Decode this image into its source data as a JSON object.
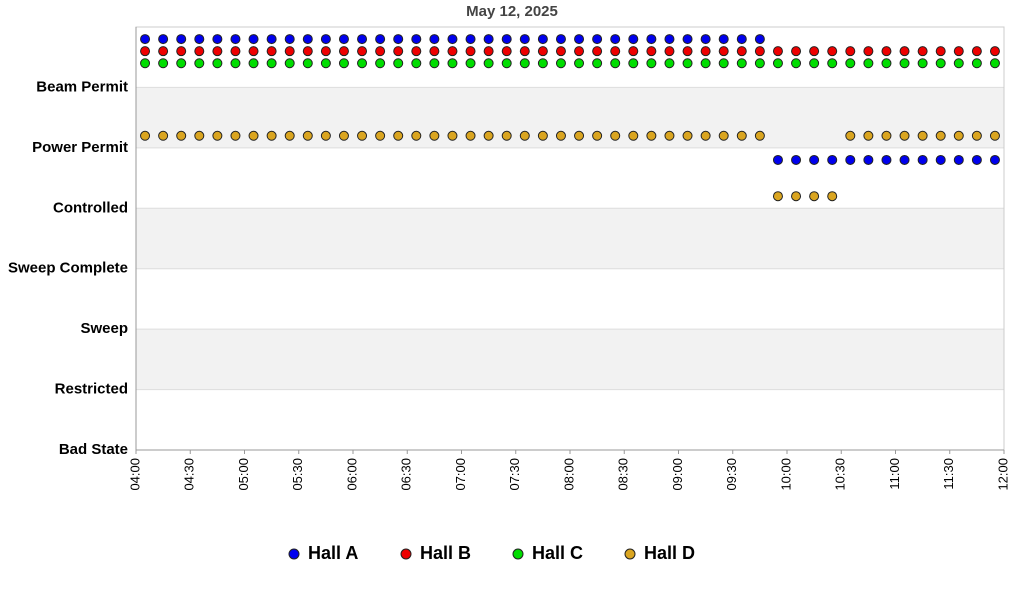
{
  "chart_data": {
    "type": "scatter",
    "title": "May 12, 2025",
    "x": [
      "04:05",
      "04:15",
      "04:25",
      "04:35",
      "04:45",
      "04:55",
      "05:05",
      "05:15",
      "05:25",
      "05:35",
      "05:45",
      "05:55",
      "06:05",
      "06:15",
      "06:25",
      "06:35",
      "06:45",
      "06:55",
      "07:05",
      "07:15",
      "07:25",
      "07:35",
      "07:45",
      "07:55",
      "08:05",
      "08:15",
      "08:25",
      "08:35",
      "08:45",
      "08:55",
      "09:05",
      "09:15",
      "09:25",
      "09:35",
      "09:45",
      "09:55",
      "10:05",
      "10:15",
      "10:25",
      "10:35",
      "10:45",
      "10:55",
      "11:05",
      "11:15",
      "11:25",
      "11:35",
      "11:45",
      "11:55"
    ],
    "xlim": [
      "04:00",
      "12:00"
    ],
    "xticks": [
      "04:00",
      "04:30",
      "05:00",
      "05:30",
      "06:00",
      "06:30",
      "07:00",
      "07:30",
      "08:00",
      "08:30",
      "09:00",
      "09:30",
      "10:00",
      "10:30",
      "11:00",
      "11:30",
      "12:00"
    ],
    "ylim": [
      0,
      7
    ],
    "yticks": [
      {
        "value": 0,
        "label": "Bad State"
      },
      {
        "value": 1,
        "label": "Restricted"
      },
      {
        "value": 2,
        "label": "Sweep"
      },
      {
        "value": 3,
        "label": "Sweep Complete"
      },
      {
        "value": 4,
        "label": "Controlled"
      },
      {
        "value": 5,
        "label": "Power Permit"
      },
      {
        "value": 6,
        "label": "Beam Permit"
      }
    ],
    "grid": true,
    "series": [
      {
        "name": "Hall A",
        "color": "#0000ee",
        "values": [
          6.8,
          6.8,
          6.8,
          6.8,
          6.8,
          6.8,
          6.8,
          6.8,
          6.8,
          6.8,
          6.8,
          6.8,
          6.8,
          6.8,
          6.8,
          6.8,
          6.8,
          6.8,
          6.8,
          6.8,
          6.8,
          6.8,
          6.8,
          6.8,
          6.8,
          6.8,
          6.8,
          6.8,
          6.8,
          6.8,
          6.8,
          6.8,
          6.8,
          6.8,
          6.8,
          4.8,
          4.8,
          4.8,
          4.8,
          4.8,
          4.8,
          4.8,
          4.8,
          4.8,
          4.8,
          4.8,
          4.8,
          4.8
        ]
      },
      {
        "name": "Hall B",
        "color": "#ee0000",
        "values": [
          6.6,
          6.6,
          6.6,
          6.6,
          6.6,
          6.6,
          6.6,
          6.6,
          6.6,
          6.6,
          6.6,
          6.6,
          6.6,
          6.6,
          6.6,
          6.6,
          6.6,
          6.6,
          6.6,
          6.6,
          6.6,
          6.6,
          6.6,
          6.6,
          6.6,
          6.6,
          6.6,
          6.6,
          6.6,
          6.6,
          6.6,
          6.6,
          6.6,
          6.6,
          6.6,
          6.6,
          6.6,
          6.6,
          6.6,
          6.6,
          6.6,
          6.6,
          6.6,
          6.6,
          6.6,
          6.6,
          6.6,
          6.6
        ]
      },
      {
        "name": "Hall C",
        "color": "#00dd00",
        "values": [
          6.4,
          6.4,
          6.4,
          6.4,
          6.4,
          6.4,
          6.4,
          6.4,
          6.4,
          6.4,
          6.4,
          6.4,
          6.4,
          6.4,
          6.4,
          6.4,
          6.4,
          6.4,
          6.4,
          6.4,
          6.4,
          6.4,
          6.4,
          6.4,
          6.4,
          6.4,
          6.4,
          6.4,
          6.4,
          6.4,
          6.4,
          6.4,
          6.4,
          6.4,
          6.4,
          6.4,
          6.4,
          6.4,
          6.4,
          6.4,
          6.4,
          6.4,
          6.4,
          6.4,
          6.4,
          6.4,
          6.4,
          6.4
        ]
      },
      {
        "name": "Hall D",
        "color": "#daa520",
        "values": [
          5.2,
          5.2,
          5.2,
          5.2,
          5.2,
          5.2,
          5.2,
          5.2,
          5.2,
          5.2,
          5.2,
          5.2,
          5.2,
          5.2,
          5.2,
          5.2,
          5.2,
          5.2,
          5.2,
          5.2,
          5.2,
          5.2,
          5.2,
          5.2,
          5.2,
          5.2,
          5.2,
          5.2,
          5.2,
          5.2,
          5.2,
          5.2,
          5.2,
          5.2,
          5.2,
          4.2,
          4.2,
          4.2,
          4.2,
          5.2,
          5.2,
          5.2,
          5.2,
          5.2,
          5.2,
          5.2,
          5.2,
          5.2
        ]
      }
    ]
  }
}
